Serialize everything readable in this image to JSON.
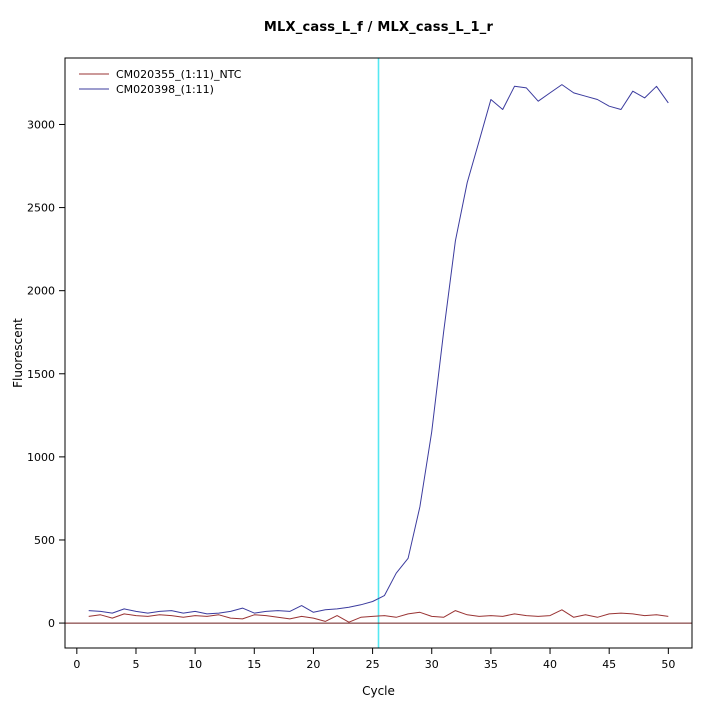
{
  "chart_data": {
    "type": "line",
    "title": "MLX_cass_L_f / MLX_cass_L_1_r",
    "xlabel": "Cycle",
    "ylabel": "Fluorescent",
    "xlim": [
      -1,
      52
    ],
    "ylim": [
      -150,
      3400
    ],
    "xticks": [
      0,
      5,
      10,
      15,
      20,
      25,
      30,
      35,
      40,
      45,
      50
    ],
    "yticks": [
      0,
      500,
      1000,
      1500,
      2000,
      2500,
      3000
    ],
    "grid": false,
    "legend_position": "top-left",
    "threshold_line": {
      "axis": "x",
      "value": 25.5,
      "color": "#55e8f2"
    },
    "baseline": {
      "axis": "y",
      "value": 0,
      "color": "#6b1a1a"
    },
    "x": [
      1,
      2,
      3,
      4,
      5,
      6,
      7,
      8,
      9,
      10,
      11,
      12,
      13,
      14,
      15,
      16,
      17,
      18,
      19,
      20,
      21,
      22,
      23,
      24,
      25,
      26,
      27,
      28,
      29,
      30,
      31,
      32,
      33,
      34,
      35,
      36,
      37,
      38,
      39,
      40,
      41,
      42,
      43,
      44,
      45,
      46,
      47,
      48,
      49,
      50
    ],
    "series": [
      {
        "name": "CM020355_(1:11)_NTC",
        "color": "#993333",
        "values": [
          40,
          50,
          30,
          55,
          45,
          40,
          50,
          45,
          35,
          45,
          40,
          50,
          30,
          25,
          50,
          45,
          35,
          25,
          40,
          30,
          10,
          45,
          5,
          35,
          40,
          45,
          35,
          55,
          65,
          40,
          35,
          75,
          50,
          40,
          45,
          40,
          55,
          45,
          40,
          45,
          80,
          35,
          50,
          35,
          55,
          60,
          55,
          45,
          50,
          40
        ]
      },
      {
        "name": "CM020398_(1:11)",
        "color": "#3b3b9e",
        "values": [
          75,
          70,
          60,
          85,
          70,
          60,
          70,
          75,
          60,
          70,
          55,
          60,
          70,
          90,
          60,
          70,
          75,
          70,
          105,
          65,
          80,
          85,
          95,
          110,
          130,
          165,
          300,
          390,
          700,
          1150,
          1750,
          2300,
          2650,
          2900,
          3150,
          3090,
          3230,
          3220,
          3140,
          3190,
          3240,
          3190,
          3170,
          3150,
          3110,
          3090,
          3200,
          3160,
          3230,
          3130
        ]
      }
    ]
  }
}
